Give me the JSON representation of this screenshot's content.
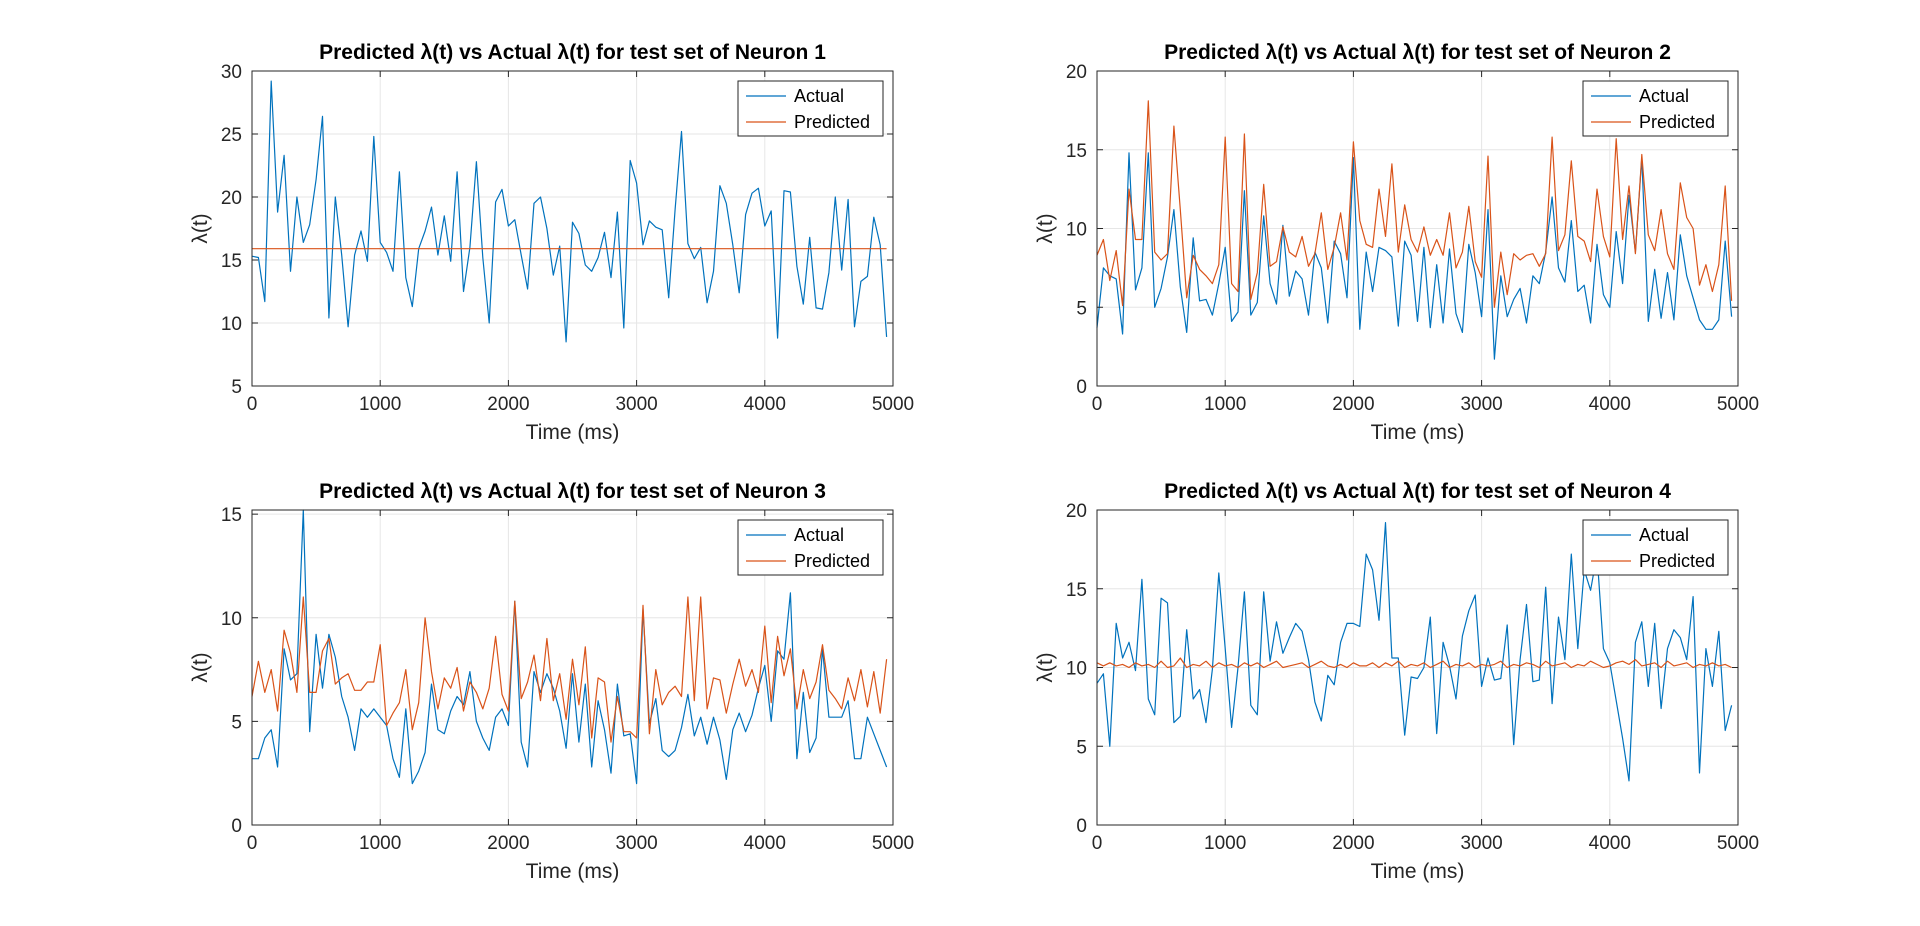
{
  "colors": {
    "actual": "#0072BD",
    "predicted": "#D95319",
    "grid": "#e6e6e6",
    "axis": "#262626"
  },
  "chart_data": [
    {
      "type": "line",
      "title": "Predicted λ(t) vs Actual λ(t) for test set of Neuron 1",
      "xlabel": "Time (ms)",
      "ylabel": "λ(t)",
      "xlim": [
        0,
        5000
      ],
      "ylim": [
        5,
        30
      ],
      "xticks": [
        0,
        1000,
        2000,
        3000,
        4000,
        5000
      ],
      "yticks": [
        5,
        10,
        15,
        20,
        25,
        30
      ],
      "grid": true,
      "legend": "top-right",
      "x": {
        "start": 0,
        "step": 50,
        "end": 4950
      },
      "series": [
        {
          "name": "Actual",
          "values": [
            15.3,
            15.2,
            11.7,
            29.2,
            18.8,
            23.3,
            14.1,
            20.0,
            16.4,
            17.8,
            21.4,
            26.4,
            10.4,
            20.0,
            15.4,
            9.7,
            15.4,
            17.3,
            14.9,
            24.8,
            16.4,
            15.6,
            14.1,
            22.0,
            13.6,
            11.3,
            15.9,
            17.3,
            19.2,
            15.4,
            18.5,
            14.9,
            22.0,
            12.5,
            16.0,
            22.8,
            15.2,
            10.0,
            19.6,
            20.6,
            17.7,
            18.2,
            15.4,
            12.7,
            19.5,
            20.0,
            17.5,
            13.8,
            16.1,
            8.5,
            18.0,
            17.1,
            14.6,
            14.1,
            15.2,
            17.2,
            13.6,
            18.8,
            9.6,
            22.9,
            21.1,
            16.2,
            18.1,
            17.6,
            17.4,
            12.0,
            19.0,
            25.2,
            16.3,
            15.1,
            16.0,
            11.6,
            14.1,
            20.9,
            19.5,
            16.2,
            12.4,
            18.6,
            20.3,
            20.7,
            17.7,
            18.9,
            8.8,
            20.5,
            20.4,
            14.5,
            11.5,
            16.8,
            11.2,
            11.1,
            14.0,
            20.0,
            14.2,
            19.8,
            9.7,
            13.3,
            13.7,
            18.4,
            16.2,
            8.9
          ]
        },
        {
          "name": "Predicted",
          "values": [
            15.9,
            15.9,
            15.9,
            15.9,
            15.9,
            15.9,
            15.9,
            15.9,
            15.9,
            15.9,
            15.9,
            15.9,
            15.9,
            15.9,
            15.9,
            15.9,
            15.9,
            15.9,
            15.9,
            15.9,
            15.9,
            15.9,
            15.9,
            15.9,
            15.9,
            15.9,
            15.9,
            15.9,
            15.9,
            15.9,
            15.9,
            15.9,
            15.9,
            15.9,
            15.9,
            15.9,
            15.9,
            15.9,
            15.9,
            15.9,
            15.9,
            15.9,
            15.9,
            15.9,
            15.9,
            15.9,
            15.9,
            15.9,
            15.9,
            15.9,
            15.9,
            15.9,
            15.9,
            15.9,
            15.9,
            15.9,
            15.9,
            15.9,
            15.9,
            15.9,
            15.9,
            15.9,
            15.9,
            15.9,
            15.9,
            15.9,
            15.9,
            15.9,
            15.9,
            15.9,
            15.9,
            15.9,
            15.9,
            15.9,
            15.9,
            15.9,
            15.9,
            15.9,
            15.9,
            15.9,
            15.9,
            15.9,
            15.9,
            15.9,
            15.9,
            15.9,
            15.9,
            15.9,
            15.9,
            15.9,
            15.9,
            15.9,
            15.9,
            15.9,
            15.9,
            15.9,
            15.9,
            15.9,
            15.9,
            15.9
          ]
        }
      ]
    },
    {
      "type": "line",
      "title": "Predicted λ(t) vs Actual λ(t) for test set of Neuron 2",
      "xlabel": "Time (ms)",
      "ylabel": "λ(t)",
      "xlim": [
        0,
        5000
      ],
      "ylim": [
        0,
        20
      ],
      "xticks": [
        0,
        1000,
        2000,
        3000,
        4000,
        5000
      ],
      "yticks": [
        0,
        5,
        10,
        15,
        20
      ],
      "grid": true,
      "legend": "top-right",
      "x": {
        "start": 0,
        "step": 50,
        "end": 4950
      },
      "series": [
        {
          "name": "Actual",
          "values": [
            3.7,
            7.5,
            7.0,
            6.8,
            3.3,
            14.8,
            6.1,
            7.5,
            14.8,
            5.0,
            6.2,
            8.2,
            11.2,
            6.3,
            3.4,
            9.4,
            5.4,
            5.5,
            4.5,
            6.5,
            8.8,
            4.1,
            4.7,
            12.4,
            4.5,
            5.3,
            10.8,
            6.5,
            5.2,
            10.2,
            5.7,
            7.3,
            6.8,
            4.5,
            8.5,
            7.5,
            4.0,
            9.2,
            8.4,
            5.6,
            14.5,
            3.6,
            8.5,
            6.0,
            8.8,
            8.6,
            8.2,
            3.8,
            9.2,
            8.3,
            4.1,
            8.8,
            3.7,
            7.7,
            4.0,
            8.7,
            4.6,
            3.4,
            9.0,
            7.2,
            4.4,
            11.2,
            1.7,
            7.0,
            4.4,
            5.5,
            6.2,
            4.0,
            7.0,
            6.5,
            8.5,
            12.0,
            7.5,
            6.6,
            10.5,
            6.0,
            6.4,
            4.0,
            9.0,
            5.8,
            5.0,
            9.8,
            6.5,
            12.1,
            8.5,
            14.5,
            4.1,
            7.4,
            4.3,
            7.2,
            4.2,
            9.6,
            7.0,
            5.6,
            4.2,
            3.6,
            3.6,
            4.2,
            9.2,
            4.4
          ]
        },
        {
          "name": "Predicted",
          "values": [
            8.3,
            9.3,
            6.7,
            8.6,
            5.1,
            12.5,
            9.3,
            9.3,
            18.1,
            8.5,
            8.0,
            8.4,
            16.5,
            11.2,
            5.6,
            8.3,
            7.4,
            7.0,
            6.5,
            7.7,
            15.8,
            6.5,
            6.0,
            16.0,
            5.5,
            7.2,
            12.8,
            7.6,
            7.9,
            10.1,
            8.5,
            8.2,
            9.5,
            7.6,
            8.4,
            11.0,
            7.4,
            8.8,
            11.0,
            8.0,
            15.5,
            10.5,
            9.0,
            8.8,
            12.5,
            9.5,
            14.1,
            8.5,
            11.5,
            9.3,
            8.5,
            10.1,
            8.3,
            9.3,
            8.3,
            11.0,
            7.5,
            8.5,
            11.4,
            7.9,
            6.9,
            14.6,
            5.0,
            8.5,
            5.8,
            8.4,
            8.0,
            8.3,
            8.4,
            7.6,
            8.4,
            15.8,
            8.6,
            9.6,
            14.3,
            9.5,
            9.2,
            7.9,
            12.5,
            9.5,
            8.2,
            15.7,
            9.3,
            12.7,
            8.4,
            14.7,
            9.6,
            8.6,
            11.2,
            8.4,
            7.4,
            12.9,
            10.7,
            10.0,
            6.4,
            7.7,
            6.0,
            7.7,
            12.7,
            5.4
          ]
        }
      ]
    },
    {
      "type": "line",
      "title": "Predicted λ(t) vs Actual λ(t) for test set of Neuron 3",
      "xlabel": "Time (ms)",
      "ylabel": "λ(t)",
      "xlim": [
        0,
        5000
      ],
      "ylim": [
        0,
        15.2
      ],
      "xticks": [
        0,
        1000,
        2000,
        3000,
        4000,
        5000
      ],
      "yticks": [
        0,
        5,
        10,
        15
      ],
      "grid": true,
      "legend": "top-right",
      "x": {
        "start": 0,
        "step": 50,
        "end": 4950
      },
      "series": [
        {
          "name": "Actual",
          "values": [
            3.2,
            3.2,
            4.2,
            4.6,
            2.8,
            8.5,
            7.0,
            7.3,
            15.2,
            4.5,
            9.2,
            6.6,
            9.2,
            8.1,
            6.2,
            5.2,
            3.6,
            5.6,
            5.2,
            5.6,
            5.2,
            4.8,
            3.2,
            2.3,
            5.6,
            2.0,
            2.6,
            3.5,
            6.8,
            4.6,
            4.4,
            5.5,
            6.2,
            5.8,
            7.4,
            5.0,
            4.2,
            3.6,
            5.2,
            5.6,
            4.8,
            10.8,
            4.0,
            2.8,
            7.4,
            6.4,
            7.3,
            6.6,
            5.5,
            3.7,
            7.3,
            4.0,
            6.8,
            2.8,
            6.0,
            4.6,
            2.5,
            6.8,
            4.3,
            4.4,
            2.0,
            10.4,
            4.9,
            6.1,
            3.6,
            3.3,
            3.6,
            4.7,
            6.3,
            4.3,
            5.2,
            3.9,
            5.2,
            4.1,
            2.2,
            4.6,
            5.4,
            4.5,
            5.3,
            6.6,
            7.7,
            5.0,
            8.4,
            8.0,
            11.2,
            3.2,
            6.4,
            3.5,
            4.2,
            8.5,
            5.2,
            5.2,
            5.2,
            6.0,
            3.2,
            3.2,
            5.2,
            4.4,
            3.6,
            2.8
          ]
        },
        {
          "name": "Predicted",
          "values": [
            6.2,
            7.9,
            6.4,
            7.5,
            5.5,
            9.4,
            8.3,
            6.4,
            11.0,
            6.4,
            6.4,
            8.4,
            9.0,
            6.8,
            7.1,
            7.3,
            6.5,
            6.5,
            6.9,
            6.9,
            8.7,
            4.8,
            5.4,
            5.9,
            7.5,
            4.6,
            5.9,
            10.0,
            7.4,
            5.6,
            7.1,
            6.6,
            7.6,
            5.5,
            6.9,
            6.4,
            5.6,
            6.6,
            9.1,
            6.3,
            5.5,
            10.8,
            6.1,
            6.9,
            8.2,
            6.0,
            9.0,
            6.0,
            7.3,
            5.1,
            8.0,
            5.8,
            8.6,
            4.2,
            7.1,
            6.9,
            4.0,
            6.2,
            4.5,
            4.5,
            4.2,
            10.6,
            4.4,
            7.5,
            5.8,
            6.4,
            6.7,
            6.2,
            11.0,
            6.0,
            11.0,
            5.6,
            7.1,
            7.0,
            5.4,
            6.8,
            8.0,
            6.7,
            7.5,
            6.4,
            9.6,
            5.9,
            9.1,
            7.2,
            8.5,
            5.6,
            7.5,
            6.1,
            6.9,
            8.7,
            6.5,
            6.1,
            5.6,
            7.1,
            6.0,
            7.5,
            5.7,
            7.4,
            5.4,
            8.0
          ]
        }
      ]
    },
    {
      "type": "line",
      "title": "Predicted λ(t) vs Actual λ(t) for test set of Neuron 4",
      "xlabel": "Time (ms)",
      "ylabel": "λ(t)",
      "xlim": [
        0,
        5000
      ],
      "ylim": [
        0,
        20
      ],
      "xticks": [
        0,
        1000,
        2000,
        3000,
        4000,
        5000
      ],
      "yticks": [
        0,
        5,
        10,
        15,
        20
      ],
      "grid": true,
      "legend": "top-right",
      "x": {
        "start": 0,
        "step": 50,
        "end": 4950
      },
      "series": [
        {
          "name": "Actual",
          "values": [
            9.0,
            9.6,
            5.0,
            12.8,
            10.6,
            11.6,
            9.8,
            15.6,
            8.0,
            7.0,
            14.4,
            14.1,
            6.5,
            6.9,
            12.4,
            8.0,
            8.6,
            6.5,
            9.9,
            16.0,
            11.2,
            6.2,
            10.0,
            14.8,
            7.6,
            7.0,
            14.8,
            10.4,
            12.9,
            10.9,
            11.9,
            12.8,
            12.3,
            10.5,
            7.8,
            6.6,
            9.5,
            8.9,
            11.6,
            12.8,
            12.8,
            12.6,
            17.2,
            16.2,
            13.0,
            19.2,
            10.6,
            10.6,
            5.7,
            9.4,
            9.3,
            10.0,
            13.2,
            5.8,
            11.6,
            10.1,
            8.0,
            12.0,
            13.6,
            14.6,
            8.8,
            10.6,
            9.2,
            9.3,
            12.7,
            5.1,
            10.5,
            14.0,
            9.1,
            9.2,
            15.1,
            7.7,
            13.2,
            10.5,
            17.2,
            11.2,
            16.2,
            14.9,
            17.2,
            11.2,
            10.3,
            7.9,
            5.5,
            2.8,
            11.6,
            12.9,
            8.8,
            12.8,
            7.4,
            11.2,
            12.4,
            11.9,
            10.5,
            14.5,
            3.3,
            11.2,
            8.8,
            12.3,
            6.0,
            7.6
          ]
        },
        {
          "name": "Predicted",
          "values": [
            10.3,
            10.1,
            10.3,
            10.1,
            10.2,
            10.0,
            10.3,
            10.1,
            10.2,
            10.0,
            10.4,
            10.0,
            10.1,
            10.6,
            10.0,
            10.2,
            10.1,
            10.4,
            10.0,
            10.3,
            10.1,
            10.2,
            10.0,
            10.3,
            10.1,
            10.3,
            10.0,
            10.2,
            10.4,
            10.0,
            10.1,
            10.2,
            10.3,
            10.0,
            10.2,
            10.4,
            10.1,
            10.0,
            10.2,
            10.0,
            10.3,
            10.1,
            10.1,
            10.3,
            10.0,
            10.3,
            10.1,
            10.4,
            10.0,
            10.2,
            10.1,
            10.3,
            10.0,
            10.2,
            10.4,
            10.0,
            10.2,
            10.1,
            10.3,
            10.0,
            10.2,
            10.1,
            10.2,
            10.4,
            10.0,
            10.2,
            10.1,
            10.3,
            10.2,
            10.0,
            10.4,
            10.1,
            10.2,
            10.3,
            10.0,
            10.2,
            10.1,
            10.4,
            10.2,
            10.0,
            10.1,
            10.3,
            10.4,
            10.2,
            10.5,
            10.1,
            10.2,
            10.3,
            10.0,
            10.4,
            10.1,
            10.2,
            10.3,
            10.0,
            10.2,
            10.1,
            10.3,
            10.1,
            10.2,
            10.0
          ]
        }
      ]
    }
  ]
}
